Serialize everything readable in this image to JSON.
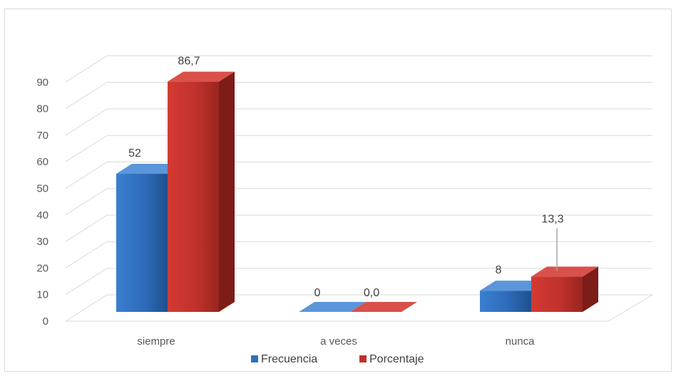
{
  "chart_data": {
    "type": "bar",
    "title": "",
    "xlabel": "",
    "ylabel": "",
    "categories": [
      "siempre",
      "a veces",
      "nunca"
    ],
    "series": [
      {
        "name": "Frecuencia",
        "values": [
          52,
          0,
          8
        ],
        "labels": [
          "52",
          "0",
          "8"
        ],
        "color": "#2e6fbd"
      },
      {
        "name": "Porcentaje",
        "values": [
          86.7,
          0.0,
          13.3
        ],
        "labels": [
          "86,7",
          "0,0",
          "13,3"
        ],
        "color": "#c0322b"
      }
    ],
    "ylim": [
      0,
      90
    ],
    "yticks": [
      "0",
      "10",
      "20",
      "30",
      "40",
      "50",
      "60",
      "70",
      "80",
      "90"
    ],
    "grid": true,
    "legend": "bottom",
    "style": "3d-column"
  }
}
